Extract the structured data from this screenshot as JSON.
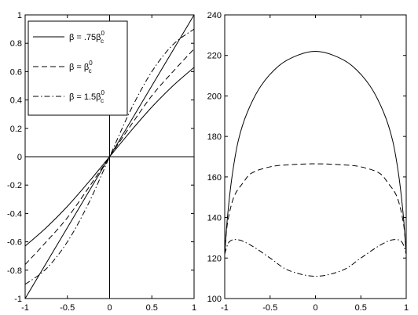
{
  "chart_data": [
    {
      "type": "line",
      "title": "",
      "xlabel": "",
      "ylabel": "",
      "xlim": [
        -1,
        1
      ],
      "ylim": [
        -1,
        1
      ],
      "grid": false,
      "legend_placement": "top-left",
      "x_ticks": [
        "-1",
        "-0.5",
        "0",
        "0.5",
        "1"
      ],
      "x_tick_values": [
        -1,
        -0.5,
        0,
        0.5,
        1
      ],
      "y_ticks": [
        "-1",
        "-0.8",
        "-0.6",
        "-0.4",
        "-0.2",
        "0",
        "0.2",
        "0.4",
        "0.6",
        "0.8",
        "1"
      ],
      "y_tick_values": [
        -1,
        -0.8,
        -0.6,
        -0.4,
        -0.2,
        0,
        0.2,
        0.4,
        0.6,
        0.8,
        1
      ],
      "reference_lines": [
        {
          "kind": "diagonal",
          "x": [
            -1,
            1
          ],
          "y": [
            -1,
            1
          ]
        },
        {
          "kind": "horizontal",
          "y": 0
        },
        {
          "kind": "vertical",
          "x": 0
        }
      ],
      "series": [
        {
          "name": "β = .75β_c^0",
          "style": "solid",
          "x": [
            -1,
            -0.75,
            -0.5,
            -0.25,
            0,
            0.25,
            0.5,
            0.75,
            1
          ],
          "y": [
            -0.63,
            -0.5,
            -0.35,
            -0.18,
            0,
            0.18,
            0.35,
            0.5,
            0.63
          ]
        },
        {
          "name": "β = β_c^0",
          "style": "dashed",
          "x": [
            -1,
            -0.75,
            -0.5,
            -0.25,
            0,
            0.25,
            0.5,
            0.75,
            1
          ],
          "y": [
            -0.76,
            -0.6,
            -0.43,
            -0.22,
            0,
            0.22,
            0.43,
            0.6,
            0.76
          ]
        },
        {
          "name": "β = 1.5β_c^0",
          "style": "dashdot",
          "x": [
            -1,
            -0.75,
            -0.5,
            -0.25,
            0,
            0.25,
            0.5,
            0.75,
            1
          ],
          "y": [
            -0.9,
            -0.79,
            -0.6,
            -0.33,
            0,
            0.33,
            0.6,
            0.79,
            0.9
          ]
        }
      ],
      "legend": [
        {
          "prefix": "β = .75β",
          "sub": "c",
          "sup": "0",
          "style": "solid"
        },
        {
          "prefix": "β = β",
          "sub": "c",
          "sup": "0",
          "style": "dashed"
        },
        {
          "prefix": "β = 1.5β",
          "sub": "c",
          "sup": "0",
          "style": "dashdot"
        }
      ]
    },
    {
      "type": "line",
      "title": "",
      "xlabel": "",
      "ylabel": "",
      "xlim": [
        -1,
        1
      ],
      "ylim": [
        100,
        240
      ],
      "grid": false,
      "x_ticks": [
        "-1",
        "-0.5",
        "0",
        "0.5",
        "1"
      ],
      "x_tick_values": [
        -1,
        -0.5,
        0,
        0.5,
        1
      ],
      "y_ticks": [
        "100",
        "120",
        "140",
        "160",
        "180",
        "200",
        "220",
        "240"
      ],
      "y_tick_values": [
        100,
        120,
        140,
        160,
        180,
        200,
        220,
        240
      ],
      "series": [
        {
          "style": "solid",
          "x": [
            -1,
            -0.97,
            -0.92,
            -0.85,
            -0.75,
            -0.6,
            -0.4,
            -0.2,
            0,
            0.2,
            0.4,
            0.6,
            0.75,
            0.85,
            0.92,
            0.97,
            1
          ],
          "y": [
            122,
            140,
            160,
            178,
            192,
            205,
            215,
            220,
            222,
            220,
            215,
            205,
            192,
            178,
            160,
            140,
            122
          ]
        },
        {
          "style": "dashed",
          "x": [
            -1,
            -0.97,
            -0.9,
            -0.8,
            -0.7,
            -0.5,
            -0.3,
            0,
            0.3,
            0.5,
            0.7,
            0.8,
            0.9,
            0.97,
            1
          ],
          "y": [
            122,
            137,
            150,
            157,
            162,
            165,
            166,
            166.5,
            166,
            165,
            162,
            157,
            150,
            137,
            122
          ]
        },
        {
          "style": "dashdot",
          "x": [
            -1,
            -0.95,
            -0.85,
            -0.7,
            -0.5,
            -0.3,
            0,
            0.3,
            0.5,
            0.7,
            0.85,
            0.95,
            1
          ],
          "y": [
            122,
            128,
            129,
            126,
            120,
            114,
            111,
            114,
            120,
            126,
            129,
            128,
            122
          ]
        }
      ]
    }
  ]
}
